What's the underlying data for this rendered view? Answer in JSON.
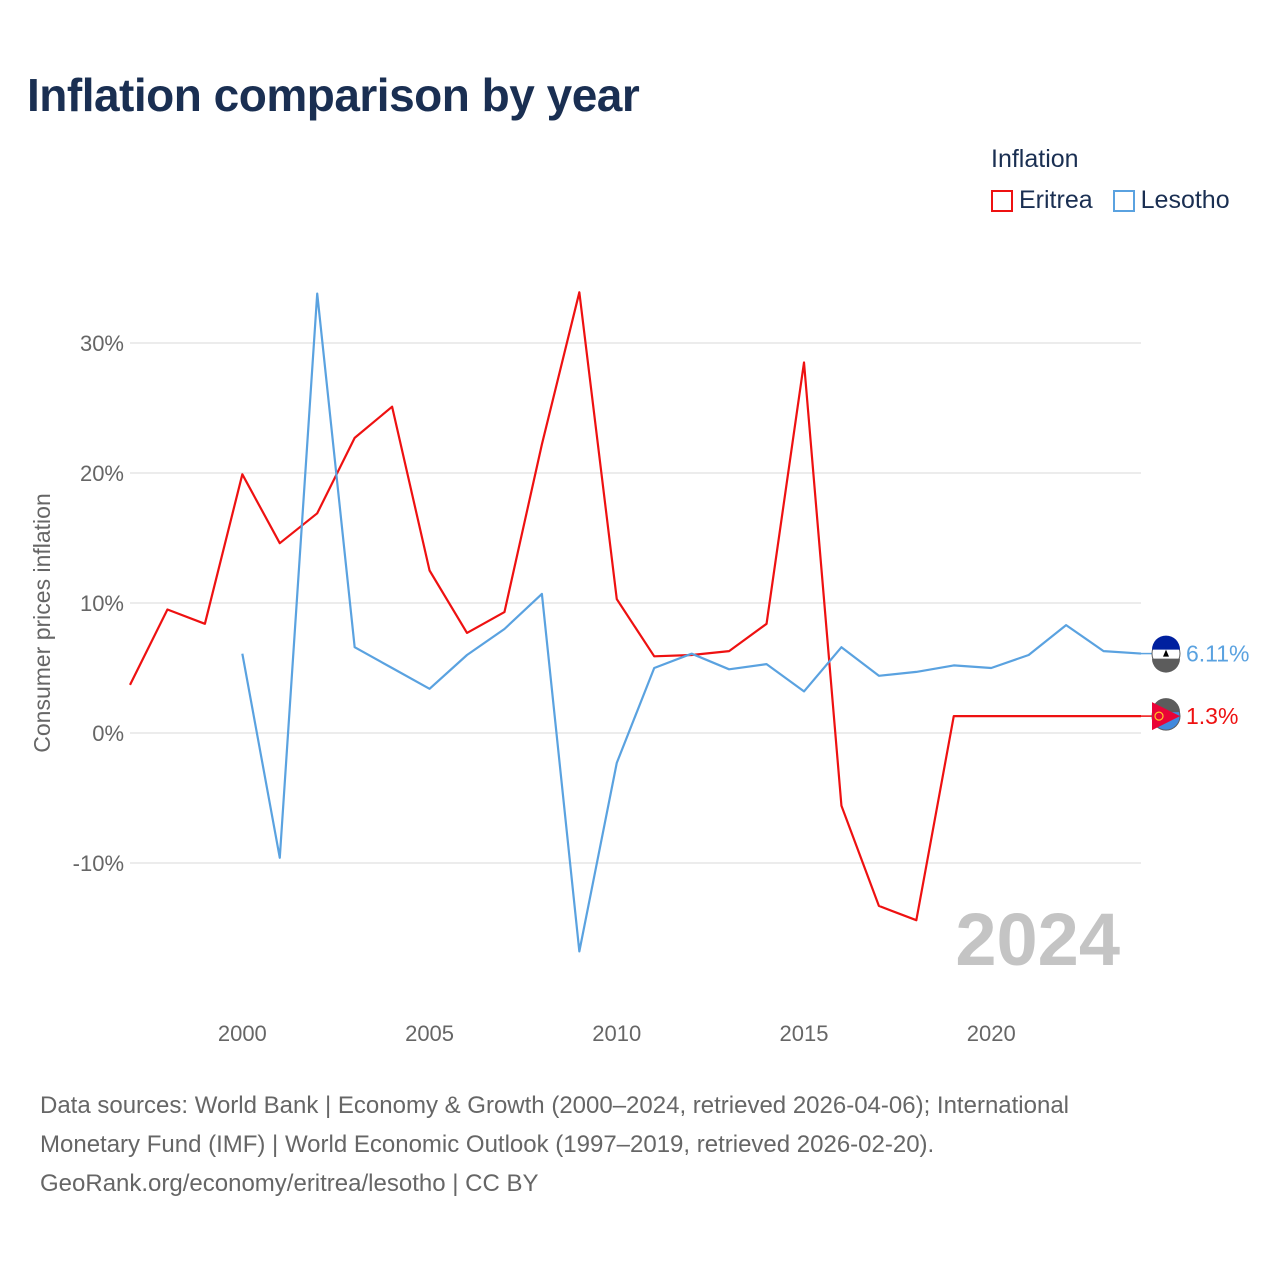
{
  "title": "Inflation comparison by year",
  "legend": {
    "title": "Inflation",
    "items": [
      {
        "label": "Eritrea",
        "color": "#ee1111"
      },
      {
        "label": "Lesotho",
        "color": "#5aa2e0"
      }
    ]
  },
  "chart_data": {
    "type": "line",
    "ylabel": "Consumer prices inflation",
    "xlabel": "",
    "ylim": [
      -19.5,
      36
    ],
    "xlim": [
      1997,
      2024
    ],
    "x_ticks": [
      2000,
      2005,
      2010,
      2015,
      2020
    ],
    "y_ticks": [
      30,
      20,
      10,
      0,
      -10
    ],
    "y_tick_labels": [
      "30%",
      "20%",
      "10%",
      "0%",
      "-10%"
    ],
    "watermark_year": "2024",
    "grid": true,
    "series": [
      {
        "name": "Eritrea",
        "color": "#ee1111",
        "end_label": "1.3%",
        "x": [
          1997,
          1998,
          1999,
          2000,
          2001,
          2002,
          2003,
          2004,
          2005,
          2006,
          2007,
          2008,
          2009,
          2010,
          2011,
          2012,
          2013,
          2014,
          2015,
          2016,
          2017,
          2018,
          2019,
          2020,
          2021,
          2022,
          2023,
          2024
        ],
        "values": [
          3.7,
          9.5,
          8.4,
          19.9,
          14.6,
          16.9,
          22.7,
          25.1,
          12.5,
          7.7,
          9.3,
          22.2,
          33.9,
          10.3,
          5.9,
          6.0,
          6.3,
          8.4,
          28.5,
          -5.6,
          -13.3,
          -14.4,
          1.3,
          1.3,
          1.3,
          1.3,
          1.3,
          1.3
        ]
      },
      {
        "name": "Lesotho",
        "color": "#5aa2e0",
        "end_label": "6.11%",
        "x": [
          2000,
          2001,
          2002,
          2003,
          2004,
          2005,
          2006,
          2007,
          2008,
          2009,
          2010,
          2011,
          2012,
          2013,
          2014,
          2015,
          2016,
          2017,
          2018,
          2019,
          2020,
          2021,
          2022,
          2023,
          2024
        ],
        "values": [
          6.1,
          -9.6,
          33.8,
          6.6,
          5.0,
          3.4,
          6.0,
          8.0,
          10.7,
          -16.8,
          -2.3,
          5.0,
          6.1,
          4.9,
          5.3,
          3.2,
          6.6,
          4.4,
          4.7,
          5.2,
          5.0,
          6.0,
          8.3,
          6.3,
          6.11
        ]
      }
    ]
  },
  "footer": {
    "line1": "Data sources: World Bank | Economy & Growth (2000–2024, retrieved 2026-04-06); International",
    "line2": "Monetary Fund (IMF) | World Economic Outlook (1997–2019, retrieved 2026-02-20).",
    "line3": "GeoRank.org/economy/eritrea/lesotho | CC BY"
  }
}
